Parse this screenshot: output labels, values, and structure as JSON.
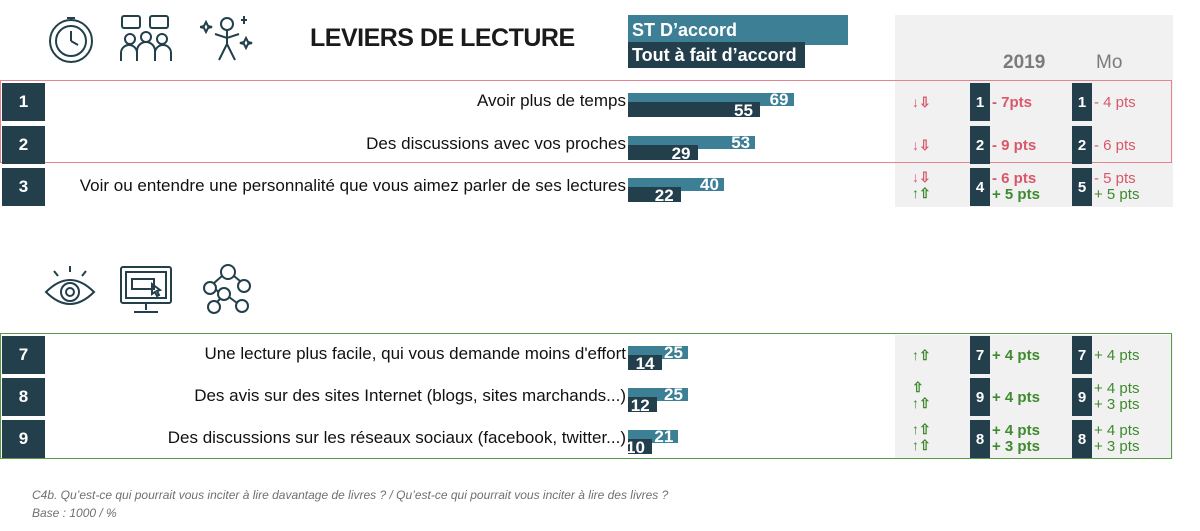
{
  "title": "LEVIERS DE LECTURE",
  "legend": {
    "st": "ST D’accord",
    "tf": "Tout à fait d’accord"
  },
  "col_headers": {
    "c1": "2019",
    "c2": "Mo"
  },
  "colors": {
    "st_bar": "#3d7f95",
    "tf_bar": "#233f4c",
    "negative": "#d8576b",
    "positive": "#3f8a2e",
    "frame_red": "#e7838f",
    "frame_green": "#5b9a43"
  },
  "icons": {
    "group1": [
      "stopwatch-icon",
      "discussion-group-icon",
      "star-person-icon"
    ],
    "group2": [
      "eye-icon",
      "computer-screen-icon",
      "social-network-icon"
    ]
  },
  "chart_data": {
    "type": "bar",
    "series": [
      {
        "name": "ST D’accord",
        "values": [
          69,
          53,
          40,
          25,
          25,
          21
        ]
      },
      {
        "name": "Tout à fait d’accord",
        "values": [
          55,
          29,
          22,
          14,
          12,
          10
        ]
      }
    ],
    "categories": [
      "Avoir plus de temps",
      "Des discussions avec vos proches",
      "Voir ou entendre une personnalité que vous aimez parler de ses lectures",
      "Une lecture plus facile, qui vous demande moins d'effort",
      "Des avis sur des sites Internet (blogs, sites marchands...)",
      "Des discussions sur les réseaux sociaux (facebook, twitter...)"
    ],
    "xlim": [
      0,
      100
    ]
  },
  "rows": [
    {
      "rank": "1",
      "label": "Avoir plus de temps",
      "st": 69,
      "tf": 55,
      "arrows": [
        "↓⇩"
      ],
      "c1_rank": "1",
      "c1_delta": [
        "- 7pts"
      ],
      "c2_rank": "1",
      "c2_delta": [
        "- 4 pts"
      ]
    },
    {
      "rank": "2",
      "label": "Des discussions avec vos proches",
      "st": 53,
      "tf": 29,
      "arrows": [
        "↓⇩"
      ],
      "c1_rank": "2",
      "c1_delta": [
        "- 9 pts"
      ],
      "c2_rank": "2",
      "c2_delta": [
        "- 6 pts"
      ]
    },
    {
      "rank": "3",
      "label": "Voir ou entendre une personnalité que vous aimez parler de ses lectures",
      "st": 40,
      "tf": 22,
      "arrows": [
        "↓⇩",
        "↑⇧"
      ],
      "c1_rank": "4",
      "c1_delta": [
        "- 6 pts",
        "+ 5 pts"
      ],
      "c2_rank": "5",
      "c2_delta": [
        "- 5 pts",
        "+ 5 pts"
      ]
    },
    {
      "rank": "7",
      "label": "Une lecture plus facile, qui vous demande moins d'effort",
      "st": 25,
      "tf": 14,
      "arrows": [
        "↑⇧"
      ],
      "c1_rank": "7",
      "c1_delta": [
        "+ 4 pts"
      ],
      "c2_rank": "7",
      "c2_delta": [
        "+ 4 pts"
      ]
    },
    {
      "rank": "8",
      "label": "Des avis sur des sites Internet (blogs, sites marchands...)",
      "st": 25,
      "tf": 12,
      "arrows": [
        "⇧",
        "↑⇧"
      ],
      "c1_rank": "9",
      "c1_delta": [
        "+ 4 pts"
      ],
      "c2_rank": "9",
      "c2_delta": [
        "+ 4 pts",
        "+ 3 pts"
      ]
    },
    {
      "rank": "9",
      "label": "Des discussions sur les réseaux sociaux (facebook, twitter...)",
      "st": 21,
      "tf": 10,
      "arrows": [
        "↑⇧",
        "↑⇧"
      ],
      "c1_rank": "8",
      "c1_delta": [
        "+ 4 pts",
        "+ 3 pts"
      ],
      "c2_rank": "8",
      "c2_delta": [
        "+ 4 pts",
        "+ 3 pts"
      ]
    }
  ],
  "footnote": {
    "line1": "C4b. Qu’est-ce qui pourrait vous inciter à lire davantage de livres ? / Qu’est-ce qui pourrait vous inciter à lire des livres ?",
    "line2": "Base : 1000 / %"
  }
}
